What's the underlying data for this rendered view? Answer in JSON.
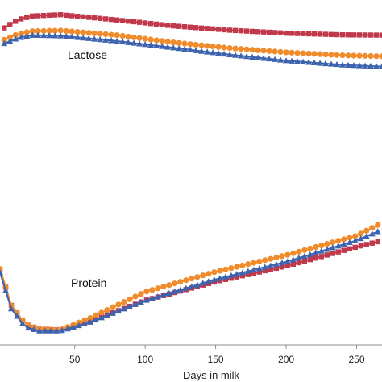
{
  "chart_data": {
    "type": "line",
    "xlabel": "Days in milk",
    "ylabel": "",
    "xlim": [
      -3,
      268
    ],
    "ylim": [
      0,
      100
    ],
    "grid": false,
    "x_ticks": [
      50,
      100,
      150,
      200,
      250
    ],
    "annotations": [
      "Lactose",
      "Protein"
    ],
    "series": [
      {
        "color": "#c0394b",
        "marker": "square",
        "panel": "lactose",
        "points": [
          [
            0,
            94
          ],
          [
            10,
            96.5
          ],
          [
            20,
            97.6
          ],
          [
            40,
            98
          ],
          [
            80,
            96.4
          ],
          [
            120,
            94.6
          ],
          [
            160,
            93.3
          ],
          [
            200,
            92.4
          ],
          [
            240,
            91.9
          ],
          [
            268,
            91.8
          ]
        ]
      },
      {
        "color": "#f08c2c",
        "marker": "circle",
        "panel": "lactose",
        "points": [
          [
            0,
            90.4
          ],
          [
            10,
            92.2
          ],
          [
            20,
            93
          ],
          [
            40,
            93.2
          ],
          [
            80,
            91.8
          ],
          [
            120,
            89.6
          ],
          [
            160,
            87.9
          ],
          [
            200,
            86.6
          ],
          [
            240,
            85.7
          ],
          [
            268,
            85.4
          ]
        ]
      },
      {
        "color": "#3d63ae",
        "marker": "triangle",
        "panel": "lactose",
        "points": [
          [
            0,
            89.3
          ],
          [
            10,
            91
          ],
          [
            20,
            91.8
          ],
          [
            40,
            91.6
          ],
          [
            80,
            90
          ],
          [
            120,
            88
          ],
          [
            160,
            85.9
          ],
          [
            200,
            84.1
          ],
          [
            240,
            82.8
          ],
          [
            268,
            82.3
          ]
        ]
      },
      {
        "color": "#c0394b",
        "marker": "square",
        "panel": "protein",
        "points": [
          [
            -3,
            21
          ],
          [
            5,
            10
          ],
          [
            15,
            4.3
          ],
          [
            25,
            2.8
          ],
          [
            40,
            2.6
          ],
          [
            60,
            5
          ],
          [
            100,
            11.5
          ],
          [
            150,
            17.2
          ],
          [
            200,
            21.9
          ],
          [
            250,
            27.7
          ],
          [
            268,
            29.6
          ]
        ]
      },
      {
        "color": "#f08c2c",
        "marker": "circle",
        "panel": "protein",
        "points": [
          [
            -3,
            21
          ],
          [
            5,
            10
          ],
          [
            15,
            4.3
          ],
          [
            25,
            2.8
          ],
          [
            40,
            2.6
          ],
          [
            60,
            6
          ],
          [
            100,
            14.1
          ],
          [
            150,
            20.2
          ],
          [
            200,
            25.2
          ],
          [
            250,
            31.1
          ],
          [
            268,
            35
          ]
        ]
      },
      {
        "color": "#3d63ae",
        "marker": "triangle",
        "panel": "protein",
        "points": [
          [
            -3,
            20
          ],
          [
            5,
            9
          ],
          [
            15,
            3.4
          ],
          [
            25,
            2.3
          ],
          [
            40,
            2.3
          ],
          [
            60,
            4.8
          ],
          [
            100,
            11.5
          ],
          [
            150,
            17.9
          ],
          [
            200,
            23.2
          ],
          [
            250,
            29.7
          ],
          [
            268,
            32.9
          ]
        ]
      }
    ]
  }
}
